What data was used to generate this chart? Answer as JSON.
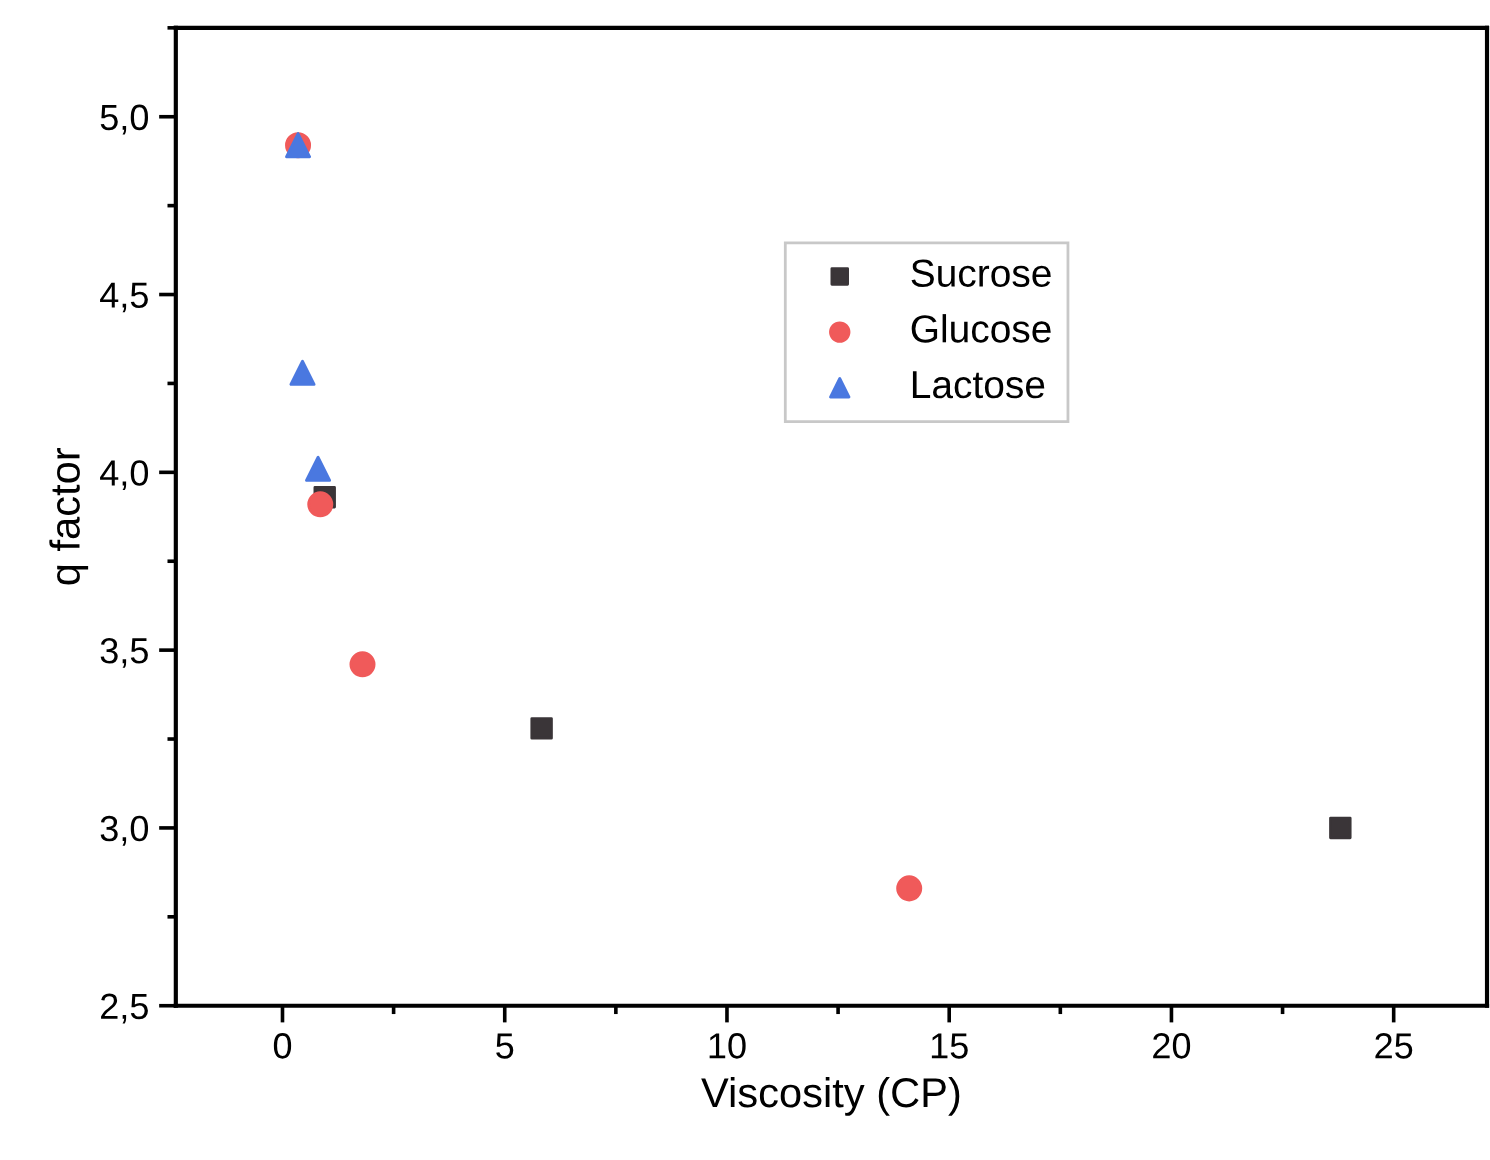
{
  "chart_data": {
    "type": "scatter",
    "xlabel": "Viscosity (CP)",
    "ylabel": "q factor",
    "xlim": [
      -2.4,
      27.1
    ],
    "ylim": [
      2.5,
      5.25
    ],
    "xticks": [
      0,
      5,
      10,
      15,
      20,
      25
    ],
    "yticks": [
      {
        "value": 2.5,
        "label": "2,5"
      },
      {
        "value": 3.0,
        "label": "3,0"
      },
      {
        "value": 3.5,
        "label": "3,5"
      },
      {
        "value": 4.0,
        "label": "4,0"
      },
      {
        "value": 4.5,
        "label": "4,5"
      },
      {
        "value": 5.0,
        "label": "5,0"
      }
    ],
    "legend": "top right",
    "grid": false,
    "series": [
      {
        "name": "Sucrose",
        "color": "#3a3538",
        "marker": "square",
        "x": [
          0.95,
          5.83,
          23.8
        ],
        "values": [
          3.93,
          3.28,
          3.0
        ]
      },
      {
        "name": "Glucose",
        "color": "#f05a5a",
        "marker": "circle",
        "x": [
          0.35,
          0.85,
          1.8,
          14.1
        ],
        "values": [
          4.92,
          3.91,
          3.46,
          2.83
        ]
      },
      {
        "name": "Lactose",
        "color": "#4a78e0",
        "marker": "triangle",
        "x": [
          0.35,
          0.45,
          0.8
        ],
        "values": [
          4.92,
          4.28,
          4.01
        ]
      }
    ]
  }
}
